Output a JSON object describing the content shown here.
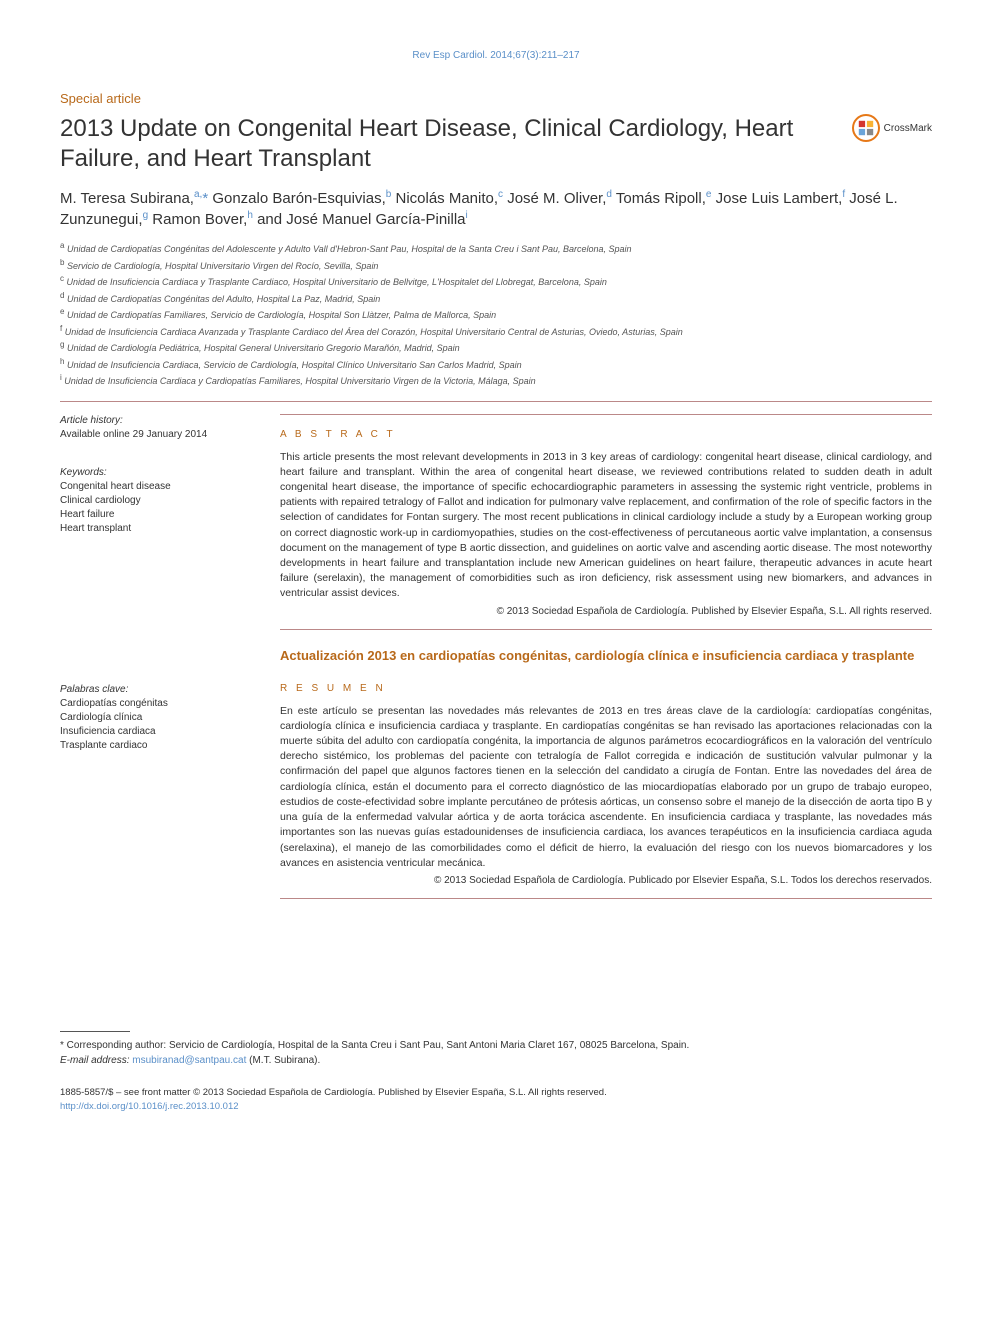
{
  "journal_citation": "Rev Esp Cardiol. 2014;67(3):211–217",
  "section_label": "Special article",
  "title": "2013 Update on Congenital Heart Disease, Clinical Cardiology, Heart Failure, and Heart Transplant",
  "crossmark_label": "CrossMark",
  "authors_html": "M. Teresa Subirana,<sup>a,</sup><span class='asterisk'>*</span> Gonzalo Barón-Esquivias,<sup>b</sup> Nicolás Manito,<sup>c</sup> José M. Oliver,<sup>d</sup> Tomás Ripoll,<sup>e</sup> Jose Luis Lambert,<sup>f</sup> José L. Zunzunegui,<sup>g</sup> Ramon Bover,<sup>h</sup> and José Manuel García-Pinilla<sup>i</sup>",
  "affiliations": [
    {
      "sup": "a",
      "text": "Unidad de Cardiopatías Congénitas del Adolescente y Adulto Vall d'Hebron-Sant Pau, Hospital de la Santa Creu i Sant Pau, Barcelona, Spain"
    },
    {
      "sup": "b",
      "text": "Servicio de Cardiología, Hospital Universitario Virgen del Rocío, Sevilla, Spain"
    },
    {
      "sup": "c",
      "text": "Unidad de Insuficiencia Cardiaca y Trasplante Cardiaco, Hospital Universitario de Bellvitge, L'Hospitalet del Llobregat, Barcelona, Spain"
    },
    {
      "sup": "d",
      "text": "Unidad de Cardiopatías Congénitas del Adulto, Hospital La Paz, Madrid, Spain"
    },
    {
      "sup": "e",
      "text": "Unidad de Cardiopatías Familiares, Servicio de Cardiología, Hospital Son Llàtzer, Palma de Mallorca, Spain"
    },
    {
      "sup": "f",
      "text": "Unidad de Insuficiencia Cardiaca Avanzada y Trasplante Cardiaco del Área del Corazón, Hospital Universitario Central de Asturias, Oviedo, Asturias, Spain"
    },
    {
      "sup": "g",
      "text": "Unidad de Cardiología Pediátrica, Hospital General Universitario Gregorio Marañón, Madrid, Spain"
    },
    {
      "sup": "h",
      "text": "Unidad de Insuficiencia Cardiaca, Servicio de Cardiología, Hospital Clínico Universitario San Carlos Madrid, Spain"
    },
    {
      "sup": "i",
      "text": "Unidad de Insuficiencia Cardiaca y Cardiopatías Familiares, Hospital Universitario Virgen de la Victoria, Málaga, Spain"
    }
  ],
  "history": {
    "label": "Article history:",
    "line": "Available online 29 January 2014"
  },
  "keywords": {
    "label": "Keywords:",
    "items": [
      "Congenital heart disease",
      "Clinical cardiology",
      "Heart failure",
      "Heart transplant"
    ]
  },
  "palabras": {
    "label": "Palabras clave:",
    "items": [
      "Cardiopatías congénitas",
      "Cardiología clínica",
      "Insuficiencia cardiaca",
      "Trasplante cardiaco"
    ]
  },
  "abstract_label": "A B S T R A C T",
  "abstract_text": "This article presents the most relevant developments in 2013 in 3 key areas of cardiology: congenital heart disease, clinical cardiology, and heart failure and transplant. Within the area of congenital heart disease, we reviewed contributions related to sudden death in adult congenital heart disease, the importance of specific echocardiographic parameters in assessing the systemic right ventricle, problems in patients with repaired tetralogy of Fallot and indication for pulmonary valve replacement, and confirmation of the role of specific factors in the selection of candidates for Fontan surgery. The most recent publications in clinical cardiology include a study by a European working group on correct diagnostic work-up in cardiomyopathies, studies on the cost-effectiveness of percutaneous aortic valve implantation, a consensus document on the management of type B aortic dissection, and guidelines on aortic valve and ascending aortic disease. The most noteworthy developments in heart failure and transplantation include new American guidelines on heart failure, therapeutic advances in acute heart failure (serelaxin), the management of comorbidities such as iron deficiency, risk assessment using new biomarkers, and advances in ventricular assist devices.",
  "abstract_copyright": "© 2013 Sociedad Española de Cardiología. Published by Elsevier España, S.L. All rights reserved.",
  "spanish_title": "Actualización 2013 en cardiopatías congénitas, cardiología clínica e insuficiencia cardiaca y trasplante",
  "resumen_label": "R E S U M E N",
  "resumen_text": "En este artículo se presentan las novedades más relevantes de 2013 en tres áreas clave de la cardiología: cardiopatías congénitas, cardiología clínica e insuficiencia cardiaca y trasplante. En cardiopatías congénitas se han revisado las aportaciones relacionadas con la muerte súbita del adulto con cardiopatía congénita, la importancia de algunos parámetros ecocardiográficos en la valoración del ventrículo derecho sistémico, los problemas del paciente con tetralogía de Fallot corregida e indicación de sustitución valvular pulmonar y la confirmación del papel que algunos factores tienen en la selección del candidato a cirugía de Fontan. Entre las novedades del área de cardiología clínica, están el documento para el correcto diagnóstico de las miocardiopatías elaborado por un grupo de trabajo europeo, estudios de coste-efectividad sobre implante percutáneo de prótesis aórticas, un consenso sobre el manejo de la disección de aorta tipo B y una guía de la enfermedad valvular aórtica y de aorta torácica ascendente. En insuficiencia cardiaca y trasplante, las novedades más importantes son las nuevas guías estadounidenses de insuficiencia cardiaca, los avances terapéuticos en la insuficiencia cardiaca aguda (serelaxina), el manejo de las comorbilidades como el déficit de hierro, la evaluación del riesgo con los nuevos biomarcadores y los avances en asistencia ventricular mecánica.",
  "resumen_copyright": "© 2013 Sociedad Española de Cardiología. Publicado por Elsevier España, S.L. Todos los derechos reservados.",
  "corresponding": {
    "text": "* Corresponding author: Servicio de Cardiología, Hospital de la Santa Creu i Sant Pau, Sant Antoni Maria Claret 167, 08025 Barcelona, Spain.",
    "email_label": "E-mail address:",
    "email": "msubiranad@santpau.cat",
    "name_paren": "(M.T. Subirana)."
  },
  "footer": {
    "line1": "1885-5857/$ – see front matter © 2013 Sociedad Española de Cardiología. Published by Elsevier España, S.L. All rights reserved.",
    "doi": "http://dx.doi.org/10.1016/j.rec.2013.10.012"
  },
  "colors": {
    "link": "#5a8fc8",
    "accent": "#b8691a",
    "crossmark": "#e67817",
    "rule": "#b88"
  }
}
